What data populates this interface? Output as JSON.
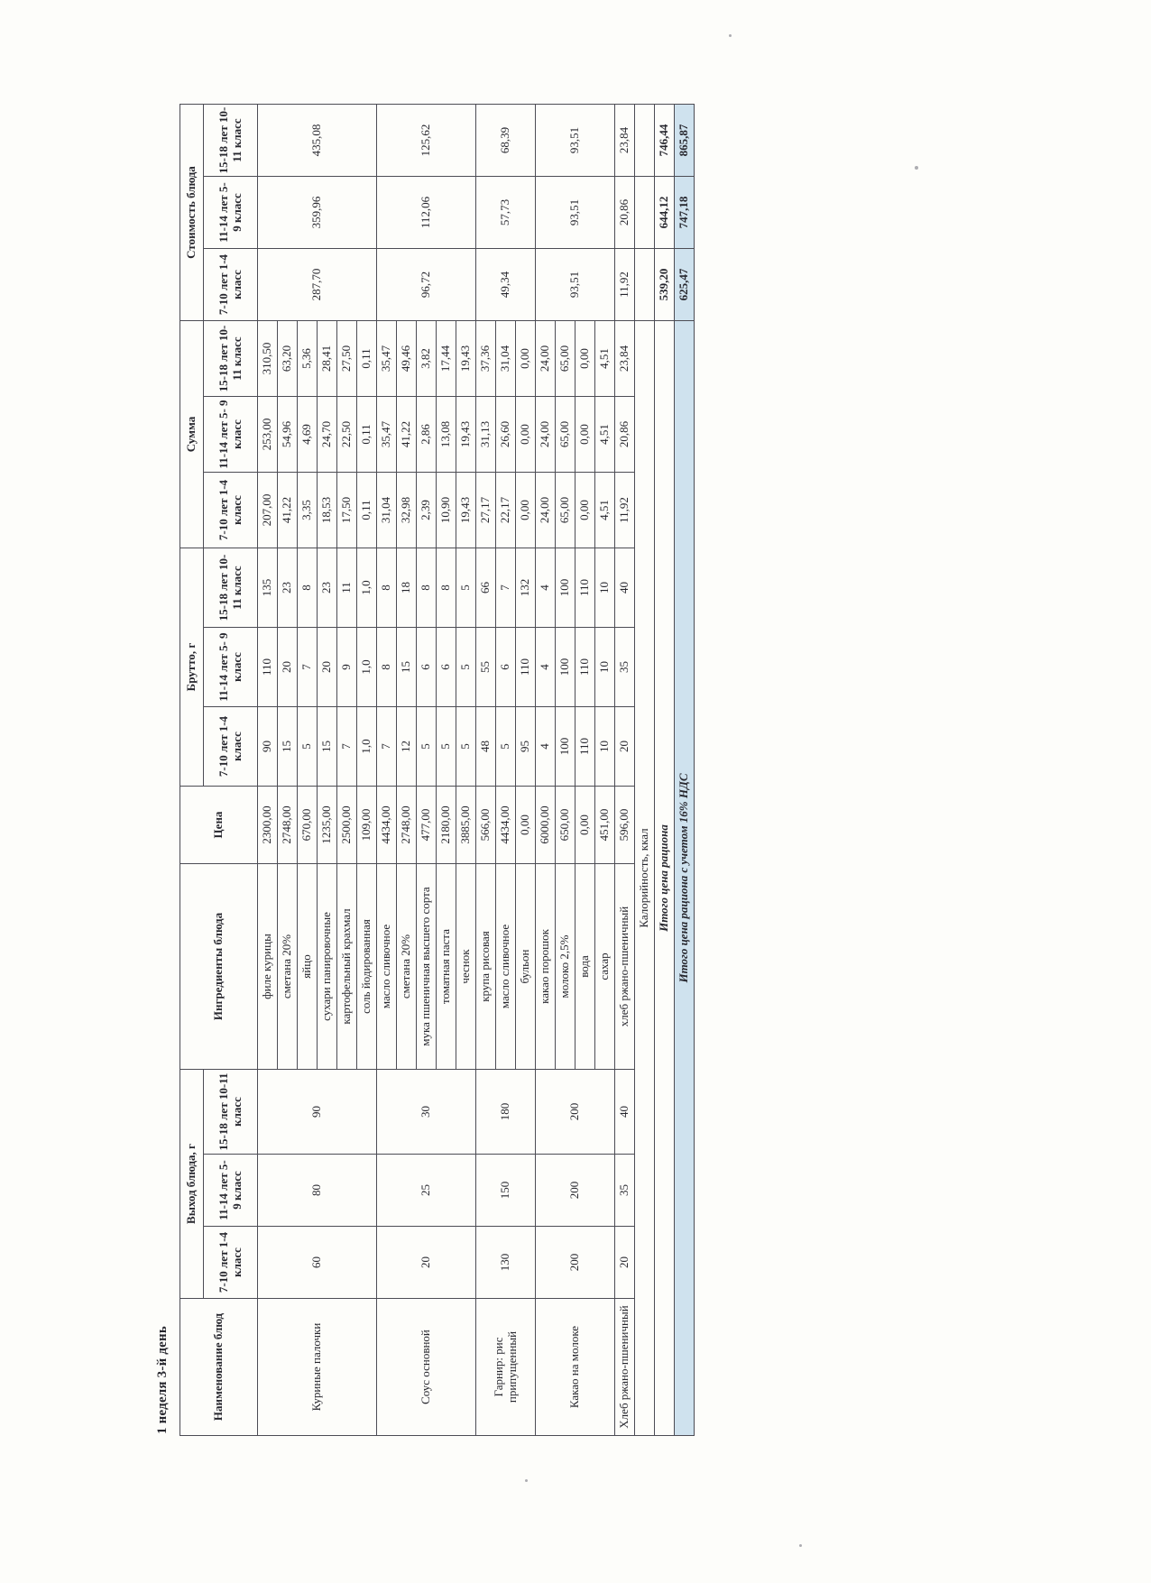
{
  "page": {
    "title": "1 неделя 3-й день"
  },
  "table": {
    "columns": {
      "name": "Наименование блюд",
      "vyhod_group": "Выход блюда, г",
      "ingredients": "Ингредиенты блюда",
      "cena": "Цена",
      "brutto_group": "Брутто, г",
      "summa_group": "Сумма",
      "stoimost_group": "Стоимость блюда",
      "age_cols": [
        "7-10 лет 1-4 класс",
        "11-14 лет 5- 9 класс",
        "15-18 лет 10-11 класс"
      ]
    },
    "dishes": [
      {
        "name": "Куриные палочки",
        "vyhod": [
          "60",
          "80",
          "90"
        ],
        "stoimost": [
          "287,70",
          "359,96",
          "435,08"
        ],
        "ingredients": [
          {
            "name": "филе курицы",
            "cena": "2300,00",
            "brutto": [
              "90",
              "110",
              "135"
            ],
            "summa": [
              "207,00",
              "253,00",
              "310,50"
            ]
          },
          {
            "name": "сметана 20%",
            "cena": "2748,00",
            "brutto": [
              "15",
              "20",
              "23"
            ],
            "summa": [
              "41,22",
              "54,96",
              "63,20"
            ]
          },
          {
            "name": "яйцо",
            "cena": "670,00",
            "brutto": [
              "5",
              "7",
              "8"
            ],
            "summa": [
              "3,35",
              "4,69",
              "5,36"
            ]
          },
          {
            "name": "сухари панировочные",
            "cena": "1235,00",
            "brutto": [
              "15",
              "20",
              "23"
            ],
            "summa": [
              "18,53",
              "24,70",
              "28,41"
            ]
          },
          {
            "name": "картофельный крахмал",
            "cena": "2500,00",
            "brutto": [
              "7",
              "9",
              "11"
            ],
            "summa": [
              "17,50",
              "22,50",
              "27,50"
            ]
          },
          {
            "name": "соль йодированная",
            "cena": "109,00",
            "brutto": [
              "1,0",
              "1,0",
              "1,0"
            ],
            "summa": [
              "0,11",
              "0,11",
              "0,11"
            ]
          }
        ]
      },
      {
        "name": "Соус основной",
        "vyhod": [
          "20",
          "25",
          "30"
        ],
        "stoimost": [
          "96,72",
          "112,06",
          "125,62"
        ],
        "ingredients": [
          {
            "name": "масло сливочное",
            "cena": "4434,00",
            "brutto": [
              "7",
              "8",
              "8"
            ],
            "summa": [
              "31,04",
              "35,47",
              "35,47"
            ]
          },
          {
            "name": "сметана 20%",
            "cena": "2748,00",
            "brutto": [
              "12",
              "15",
              "18"
            ],
            "summa": [
              "32,98",
              "41,22",
              "49,46"
            ]
          },
          {
            "name": "мука пшеничная высшего сорта",
            "cena": "477,00",
            "brutto": [
              "5",
              "6",
              "8"
            ],
            "summa": [
              "2,39",
              "2,86",
              "3,82"
            ]
          },
          {
            "name": "томатная паста",
            "cena": "2180,00",
            "brutto": [
              "5",
              "6",
              "8"
            ],
            "summa": [
              "10,90",
              "13,08",
              "17,44"
            ]
          },
          {
            "name": "чеснок",
            "cena": "3885,00",
            "brutto": [
              "5",
              "5",
              "5"
            ],
            "summa": [
              "19,43",
              "19,43",
              "19,43"
            ]
          }
        ]
      },
      {
        "name": "Гарнир: рис припущенный",
        "vyhod": [
          "130",
          "150",
          "180"
        ],
        "stoimost": [
          "49,34",
          "57,73",
          "68,39"
        ],
        "ingredients": [
          {
            "name": "крупа рисовая",
            "cena": "566,00",
            "brutto": [
              "48",
              "55",
              "66"
            ],
            "summa": [
              "27,17",
              "31,13",
              "37,36"
            ]
          },
          {
            "name": "масло сливочное",
            "cena": "4434,00",
            "brutto": [
              "5",
              "6",
              "7"
            ],
            "summa": [
              "22,17",
              "26,60",
              "31,04"
            ]
          },
          {
            "name": "бульон",
            "cena": "0,00",
            "brutto": [
              "95",
              "110",
              "132"
            ],
            "summa": [
              "0,00",
              "0,00",
              "0,00"
            ]
          }
        ]
      },
      {
        "name": "Какао на молоке",
        "vyhod": [
          "200",
          "200",
          "200"
        ],
        "stoimost": [
          "93,51",
          "93,51",
          "93,51"
        ],
        "ingredients": [
          {
            "name": "какао порошок",
            "cena": "6000,00",
            "brutto": [
              "4",
              "4",
              "4"
            ],
            "summa": [
              "24,00",
              "24,00",
              "24,00"
            ]
          },
          {
            "name": "молоко 2,5%",
            "cena": "650,00",
            "brutto": [
              "100",
              "100",
              "100"
            ],
            "summa": [
              "65,00",
              "65,00",
              "65,00"
            ]
          },
          {
            "name": "вода",
            "cena": "0,00",
            "brutto": [
              "110",
              "110",
              "110"
            ],
            "summa": [
              "0,00",
              "0,00",
              "0,00"
            ]
          },
          {
            "name": "сахар",
            "cena": "451,00",
            "brutto": [
              "10",
              "10",
              "10"
            ],
            "summa": [
              "4,51",
              "4,51",
              "4,51"
            ]
          }
        ]
      },
      {
        "name": "Хлеб ржано-пшеничный",
        "vyhod": [
          "20",
          "35",
          "40"
        ],
        "stoimost": [
          "11,92",
          "20,86",
          "23,84"
        ],
        "ingredients": [
          {
            "name": "хлеб ржано-пшеничный",
            "cena": "596,00",
            "brutto": [
              "20",
              "35",
              "40"
            ],
            "summa": [
              "11,92",
              "20,86",
              "23,84"
            ]
          }
        ]
      }
    ],
    "footer_rows": [
      {
        "label": "Калорийность, ккал",
        "values": [
          "",
          "",
          ""
        ],
        "highlight": false,
        "italic": false
      },
      {
        "label": "Итого цена рациона",
        "values": [
          "539,20",
          "644,12",
          "746,44"
        ],
        "highlight": false,
        "italic": true
      },
      {
        "label": "Итого цена рациона с учетом 16% НДС",
        "values": [
          "625,47",
          "747,18",
          "865,87"
        ],
        "highlight": true,
        "italic": true
      }
    ]
  },
  "colors": {
    "highlight": "#cfe2ee",
    "ink": "#26262d",
    "line": "#4c4c54",
    "paper": "#fdfdfa"
  }
}
